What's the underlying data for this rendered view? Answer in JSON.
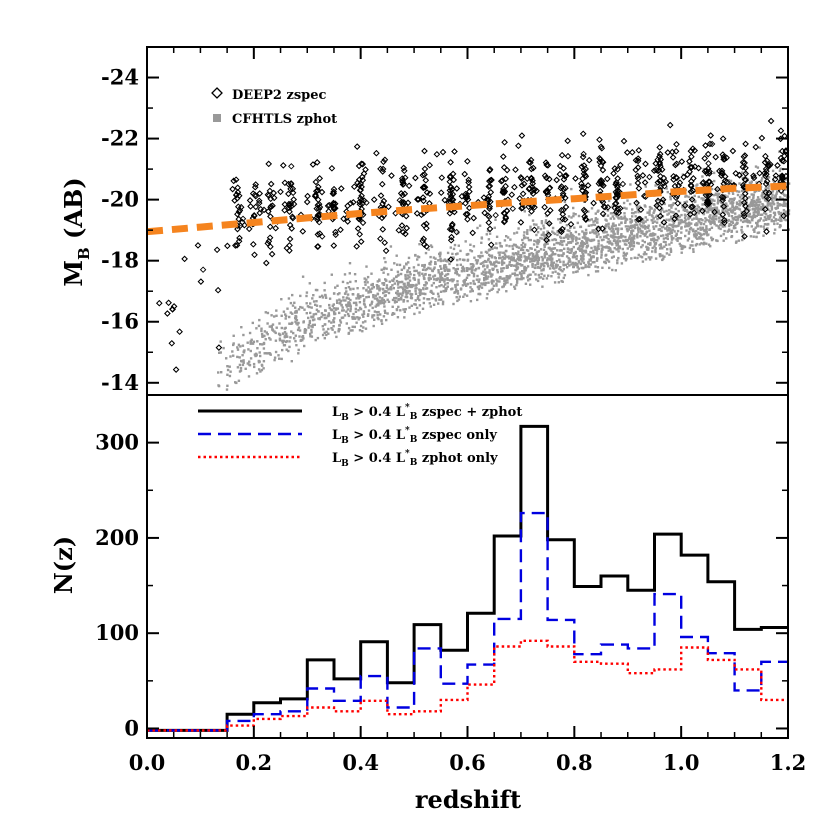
{
  "chart_data": [
    {
      "panel": "top",
      "type": "scatter",
      "xlim": [
        0.0,
        1.2
      ],
      "ylim": [
        -13.6,
        -25.0
      ],
      "ylabel": "M",
      "ylabel_sub": "B",
      "ylabel_tail": " (AB)",
      "yticks": [
        -24,
        -22,
        -20,
        -18,
        -16,
        -14
      ],
      "legend": [
        {
          "label": "DEEP2 zspec",
          "marker": "open-diamond",
          "color": "#000000"
        },
        {
          "label": "CFHTLS zphot",
          "marker": "filled-square",
          "color": "#999999"
        }
      ],
      "fit_curve": {
        "color": "#f5841f",
        "style": "dashed",
        "x": [
          0.0,
          0.1,
          0.2,
          0.3,
          0.4,
          0.5,
          0.6,
          0.7,
          0.8,
          0.9,
          1.0,
          1.1,
          1.2
        ],
        "y": [
          -18.95,
          -19.1,
          -19.25,
          -19.4,
          -19.55,
          -19.68,
          -19.8,
          -19.92,
          -20.03,
          -20.15,
          -20.27,
          -20.37,
          -20.45
        ]
      },
      "series": [
        {
          "name": "DEEP2 zspec",
          "bands_x": [
            0.17,
            0.2,
            0.23,
            0.27,
            0.32,
            0.35,
            0.4,
            0.44,
            0.48,
            0.52,
            0.57,
            0.6,
            0.64,
            0.67,
            0.7,
            0.72,
            0.75,
            0.78,
            0.82,
            0.85,
            0.88,
            0.92,
            0.96,
            0.99,
            1.02,
            1.05,
            1.08,
            1.12,
            1.16,
            1.19
          ]
        },
        {
          "name": "CFHTLS zphot",
          "lower_envelope": {
            "x": [
              0.15,
              0.3,
              0.5,
              0.7,
              0.9,
              1.1,
              1.2
            ],
            "y": [
              -13.6,
              -15.0,
              -16.2,
              -17.0,
              -17.8,
              -18.6,
              -19.0
            ]
          }
        }
      ]
    },
    {
      "panel": "bottom",
      "type": "histogram",
      "xlim": [
        0.0,
        1.2
      ],
      "ylim": [
        -10,
        350
      ],
      "xlabel": "redshift",
      "ylabel": "N(z)",
      "xticks": [
        "0.0",
        "0.2",
        "0.4",
        "0.6",
        "0.8",
        "1.0",
        "1.2"
      ],
      "yticks": [
        0,
        100,
        200,
        300
      ],
      "bin_edges": [
        0.0,
        0.05,
        0.1,
        0.15,
        0.2,
        0.25,
        0.3,
        0.35,
        0.4,
        0.45,
        0.5,
        0.55,
        0.6,
        0.65,
        0.7,
        0.75,
        0.8,
        0.85,
        0.9,
        0.95,
        1.0,
        1.05,
        1.1,
        1.15,
        1.2
      ],
      "series": [
        {
          "name": "zspec + zphot",
          "color": "#000000",
          "style": "solid",
          "values": [
            -2,
            -2,
            -2,
            15,
            27,
            31,
            72,
            52,
            91,
            48,
            109,
            82,
            121,
            202,
            317,
            198,
            149,
            160,
            145,
            204,
            182,
            154,
            104,
            106
          ]
        },
        {
          "name": "zspec only",
          "color": "#0000e0",
          "style": "dashed",
          "values": [
            -2,
            -2,
            -2,
            8,
            15,
            18,
            42,
            29,
            55,
            22,
            84,
            47,
            67,
            115,
            226,
            114,
            78,
            88,
            84,
            141,
            96,
            79,
            40,
            70
          ]
        },
        {
          "name": "zphot only",
          "color": "#ff0000",
          "style": "dotted",
          "values": [
            -2,
            -2,
            -2,
            3,
            10,
            13,
            22,
            18,
            29,
            15,
            18,
            30,
            46,
            86,
            92,
            86,
            70,
            68,
            58,
            62,
            85,
            72,
            62,
            30
          ]
        }
      ],
      "legend": [
        {
          "prefix": "L",
          "sub1": "B",
          "mid": " > 0.4 L",
          "sup": "*",
          "sub2": "B",
          "suffix": " zspec + zphot",
          "color": "#000000",
          "style": "solid"
        },
        {
          "prefix": "L",
          "sub1": "B",
          "mid": " > 0.4 L",
          "sup": "*",
          "sub2": "B",
          "suffix": " zspec only",
          "color": "#0000e0",
          "style": "dashed"
        },
        {
          "prefix": "L",
          "sub1": "B",
          "mid": " > 0.4 L",
          "sup": "*",
          "sub2": "B",
          "suffix": " zphot only",
          "color": "#ff0000",
          "style": "dotted"
        }
      ]
    }
  ]
}
